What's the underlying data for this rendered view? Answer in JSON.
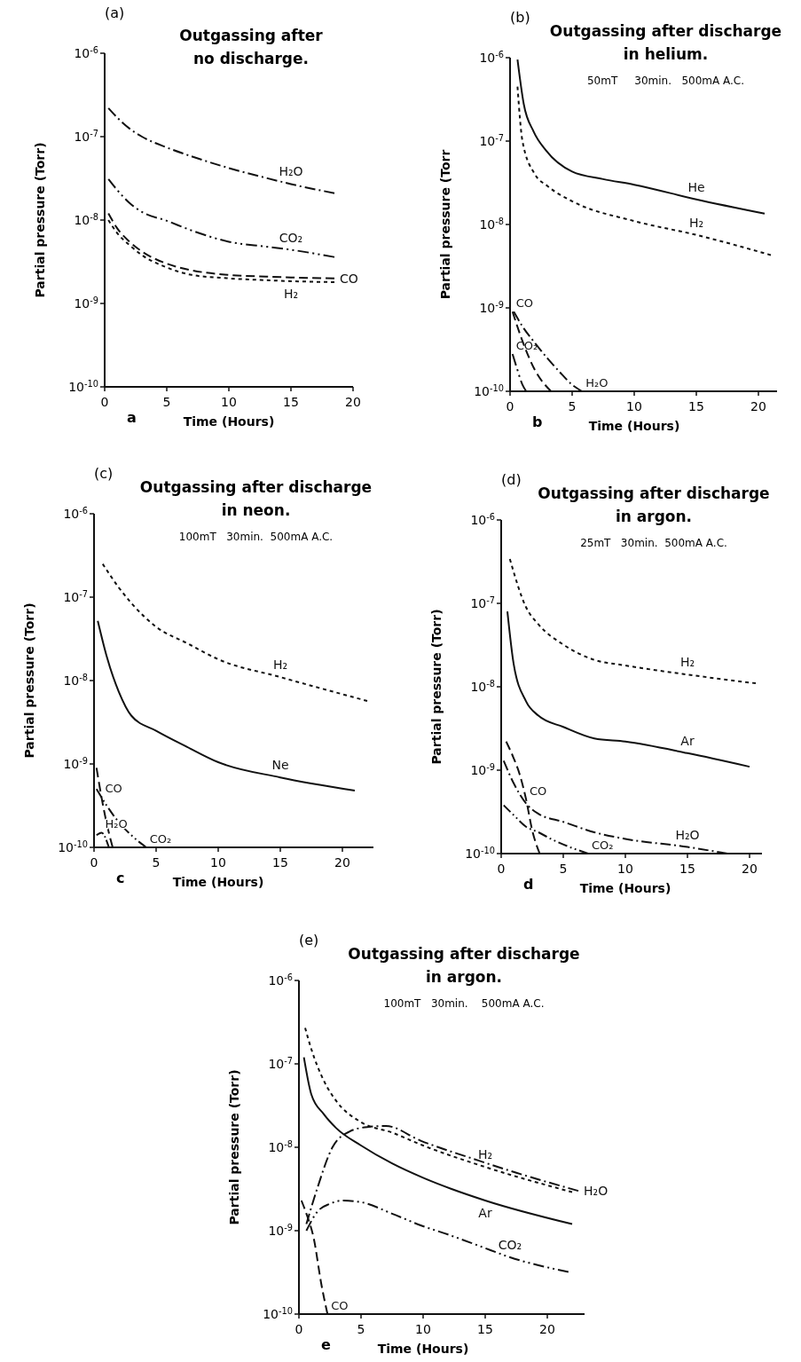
{
  "chart_data": [
    {
      "type": "line",
      "title": "Outgassing after no discharge.",
      "xlabel": "Time (Hours)",
      "ylabel": "Partial pressure (Torr)",
      "annotations": [
        "(a)",
        "a"
      ],
      "log": "y",
      "grid": false,
      "marker": "none",
      "xlim": [
        0,
        20
      ],
      "xticks": [
        0,
        5,
        10,
        15,
        20
      ],
      "ylim": [
        1e-10,
        1e-06
      ],
      "yticks": [
        {
          "value": 1e-10,
          "label": "10$^{-10}$"
        },
        {
          "value": 1e-09,
          "label": "10$^{-9}$"
        },
        {
          "value": 1e-08,
          "label": "10$^{-8}$"
        },
        {
          "value": 1e-07,
          "label": "10$^{-7}$"
        },
        {
          "value": 1e-06,
          "label": "10$^{-6}$"
        }
      ],
      "series": [
        {
          "name": "H₂O",
          "color": "#111111",
          "line_style": "dashdot",
          "x": [
            0.3,
            1,
            2,
            3,
            5,
            7,
            10,
            13,
            15,
            18.5
          ],
          "values": [
            2.2e-07,
            1.7e-07,
            1.25e-07,
            1e-07,
            7.4e-08,
            5.8e-08,
            4.2e-08,
            3.2e-08,
            2.7e-08,
            2.1e-08
          ]
        },
        {
          "name": "CO₂",
          "color": "#111111",
          "line_style": "dashdotdot",
          "x": [
            0.3,
            1,
            2,
            3,
            5,
            7,
            10,
            13,
            15,
            18.5
          ],
          "values": [
            3.1e-08,
            2.3e-08,
            1.6e-08,
            1.25e-08,
            9.8e-09,
            7.5e-09,
            5.5e-09,
            4.8e-09,
            4.4e-09,
            3.6e-09
          ]
        },
        {
          "name": "CO",
          "color": "#111111",
          "line_style": "dashed",
          "x": [
            0.3,
            1,
            2,
            3,
            5,
            7,
            10,
            13,
            15,
            18.5
          ],
          "values": [
            1.2e-08,
            8e-09,
            5.5e-09,
            4.2e-09,
            3e-09,
            2.5e-09,
            2.2e-09,
            2.1e-09,
            2.05e-09,
            2e-09
          ]
        },
        {
          "name": "H₂",
          "color": "#111111",
          "line_style": "dotted",
          "x": [
            0.3,
            1,
            2,
            3,
            5,
            7,
            10,
            13,
            15,
            18.5
          ],
          "values": [
            1e-08,
            7e-09,
            5e-09,
            3.8e-09,
            2.7e-09,
            2.2e-09,
            2e-09,
            1.9e-09,
            1.85e-09,
            1.8e-09
          ]
        }
      ]
    },
    {
      "type": "line",
      "title": "Outgassing after discharge in helium.",
      "subtitle": "50mT     30min.   500mA A.C.",
      "xlabel": "Time (Hours)",
      "ylabel": "Partial pressure (Torr",
      "annotations": [
        "(b)",
        "b"
      ],
      "log": "y",
      "grid": false,
      "marker": "none",
      "xlim": [
        0,
        21.5
      ],
      "xticks": [
        0,
        5,
        10,
        15,
        20
      ],
      "ylim": [
        1e-10,
        1e-06
      ],
      "yticks": [
        {
          "value": 1e-10,
          "label": "10$^{-10}$"
        },
        {
          "value": 1e-09,
          "label": "10$^{-9}$"
        },
        {
          "value": 1e-08,
          "label": "10$^{-8}$"
        },
        {
          "value": 1e-07,
          "label": "10$^{-7}$"
        },
        {
          "value": 1e-06,
          "label": "10$^{-6}$"
        }
      ],
      "series": [
        {
          "name": "He",
          "color": "#111111",
          "line_style": "solid",
          "x": [
            0.6,
            1.1,
            1.9,
            2.9,
            5,
            7.5,
            10,
            15,
            20.5
          ],
          "values": [
            9.5e-07,
            2.8e-07,
            1.3e-07,
            7.7e-08,
            4.3e-08,
            3.5e-08,
            3e-08,
            2e-08,
            1.35e-08
          ]
        },
        {
          "name": "H₂",
          "color": "#111111",
          "line_style": "dotted",
          "x": [
            0.6,
            1,
            2,
            3,
            5,
            10,
            15,
            21
          ],
          "values": [
            4.5e-07,
            1e-07,
            4e-08,
            2.9e-08,
            1.9e-08,
            1.1e-08,
            7.5e-09,
            4.3e-09
          ]
        },
        {
          "name": "CO₂",
          "color": "#111111",
          "line_style": "dashdotdot",
          "x": [
            0.2,
            0.5,
            1,
            1.3
          ],
          "values": [
            2.8e-10,
            2e-10,
            1.2e-10,
            1e-10
          ]
        },
        {
          "name": "CO",
          "color": "#111111",
          "line_style": "dashed",
          "x": [
            0.2,
            1,
            2,
            3.3
          ],
          "values": [
            9e-10,
            4e-10,
            1.8e-10,
            1e-10
          ]
        },
        {
          "name": "H₂O",
          "color": "#111111",
          "line_style": "dashdot",
          "x": [
            0.3,
            1,
            2,
            3,
            4,
            5,
            5.8
          ],
          "values": [
            9e-10,
            6e-10,
            3.8e-10,
            2.5e-10,
            1.7e-10,
            1.2e-10,
            1e-10
          ]
        }
      ]
    },
    {
      "type": "line",
      "title": "Outgassing after discharge in neon.",
      "subtitle": "100mT   30min.  500mA A.C.",
      "xlabel": "Time (Hours)",
      "ylabel": "Partial pressure (Torr)",
      "annotations": [
        "(c)",
        "c"
      ],
      "log": "y",
      "grid": false,
      "marker": "none",
      "xlim": [
        0,
        22.5
      ],
      "xticks": [
        0,
        5,
        10,
        15,
        20
      ],
      "ylim": [
        1e-10,
        1e-06
      ],
      "yticks": [
        {
          "value": 1e-10,
          "label": "10$^{-10}$"
        },
        {
          "value": 1e-09,
          "label": "10$^{-9}$"
        },
        {
          "value": 1e-08,
          "label": "10$^{-8}$"
        },
        {
          "value": 1e-07,
          "label": "10$^{-7}$"
        },
        {
          "value": 1e-06,
          "label": "10$^{-6}$"
        }
      ],
      "series": [
        {
          "name": "H₂",
          "color": "#111111",
          "line_style": "dotted",
          "x": [
            0.7,
            2,
            3,
            5,
            7.5,
            10,
            15,
            22
          ],
          "values": [
            2.5e-07,
            1.3e-07,
            8.5e-08,
            4.4e-08,
            2.8e-08,
            1.8e-08,
            1.1e-08,
            5.7e-09
          ]
        },
        {
          "name": "Ne",
          "color": "#111111",
          "line_style": "solid",
          "x": [
            0.3,
            1,
            2,
            3,
            5,
            7.5,
            10,
            15,
            21
          ],
          "values": [
            5.2e-08,
            2e-08,
            7.3e-09,
            3.8e-09,
            2.5e-09,
            1.6e-09,
            1.05e-09,
            6.9e-10,
            4.8e-10
          ]
        },
        {
          "name": "CO₂",
          "color": "#111111",
          "line_style": "dashdotdot",
          "x": [
            0.2,
            1,
            2,
            3,
            4.2
          ],
          "values": [
            5e-10,
            3.2e-10,
            2e-10,
            1.4e-10,
            1e-10
          ]
        },
        {
          "name": "CO",
          "color": "#111111",
          "line_style": "dashed",
          "x": [
            0.2,
            0.6,
            1,
            1.5
          ],
          "values": [
            9e-10,
            4e-10,
            2e-10,
            1e-10
          ]
        },
        {
          "name": "H₂O",
          "color": "#111111",
          "line_style": "dashdot",
          "x": [
            0.2,
            0.6,
            1.2
          ],
          "values": [
            1.4e-10,
            1.5e-10,
            1e-10
          ]
        }
      ]
    },
    {
      "type": "line",
      "title": "Outgassing after discharge in argon.",
      "subtitle": "25mT   30min.  500mA A.C.",
      "xlabel": "Time (Hours)",
      "ylabel": "Partial pressure (Torr)",
      "annotations": [
        "(d)",
        "d"
      ],
      "log": "y",
      "grid": false,
      "marker": "none",
      "xlim": [
        0,
        21
      ],
      "xticks": [
        0,
        5,
        10,
        15,
        20
      ],
      "ylim": [
        1e-10,
        1e-06
      ],
      "yticks": [
        {
          "value": 1e-10,
          "label": "10$^{-10}$"
        },
        {
          "value": 1e-09,
          "label": "10$^{-9}$"
        },
        {
          "value": 1e-08,
          "label": "10$^{-8}$"
        },
        {
          "value": 1e-07,
          "label": "10$^{-7}$"
        },
        {
          "value": 1e-06,
          "label": "10$^{-6}$"
        }
      ],
      "series": [
        {
          "name": "H₂",
          "color": "#111111",
          "line_style": "dotted",
          "x": [
            0.7,
            2,
            3,
            5,
            7.5,
            10,
            15,
            20.5
          ],
          "values": [
            3.4e-07,
            9e-08,
            5.6e-08,
            3.2e-08,
            2.1e-08,
            1.8e-08,
            1.4e-08,
            1.1e-08
          ]
        },
        {
          "name": "Ar",
          "color": "#111111",
          "line_style": "solid",
          "x": [
            0.5,
            1,
            2,
            3,
            5,
            7.5,
            10,
            15,
            20
          ],
          "values": [
            8e-08,
            1.9e-08,
            6.7e-09,
            4.5e-09,
            3.3e-09,
            2.4e-09,
            2.2e-09,
            1.6e-09,
            1.1e-09
          ]
        },
        {
          "name": "CO",
          "color": "#111111",
          "line_style": "dashed",
          "x": [
            0.4,
            1,
            1.5,
            2,
            2.5,
            3.1
          ],
          "values": [
            2.2e-09,
            1.4e-09,
            8.8e-10,
            4.5e-10,
            1.9e-10,
            1e-10
          ]
        },
        {
          "name": "CO₂",
          "color": "#111111",
          "line_style": "dashdotdot",
          "x": [
            0.2,
            1,
            2,
            3,
            4,
            5.5,
            7
          ],
          "values": [
            3.8e-10,
            2.9e-10,
            2.1e-10,
            1.8e-10,
            1.5e-10,
            1.2e-10,
            1e-10
          ]
        },
        {
          "name": "H₂O",
          "color": "#111111",
          "line_style": "dashdot",
          "x": [
            0.2,
            1,
            2,
            3,
            5,
            7.5,
            10,
            15,
            18.2
          ],
          "values": [
            1.3e-09,
            7e-10,
            4e-10,
            3e-10,
            2.4e-10,
            1.8e-10,
            1.5e-10,
            1.2e-10,
            1e-10
          ]
        }
      ]
    },
    {
      "type": "line",
      "title": "Outgassing after discharge in argon.",
      "subtitle": "100mT   30min.    500mA A.C.",
      "xlabel": "Time (Hours)",
      "ylabel": "Partial pressure (Torr)",
      "annotations": [
        "(e)",
        "e"
      ],
      "log": "y",
      "grid": false,
      "marker": "none",
      "xlim": [
        0,
        23
      ],
      "xticks": [
        0,
        5,
        10,
        15,
        20
      ],
      "ylim": [
        1e-10,
        1e-06
      ],
      "yticks": [
        {
          "value": 1e-10,
          "label": "10$^{-10}$"
        },
        {
          "value": 1e-09,
          "label": "10$^{-9}$"
        },
        {
          "value": 1e-08,
          "label": "10$^{-8}$"
        },
        {
          "value": 1e-07,
          "label": "10$^{-7}$"
        },
        {
          "value": 1e-06,
          "label": "10$^{-6}$"
        }
      ],
      "series": [
        {
          "name": "H₂",
          "color": "#111111",
          "line_style": "dotted",
          "x": [
            0.5,
            1,
            2,
            3,
            5,
            7.5,
            10,
            15,
            22
          ],
          "values": [
            2.7e-07,
            1.5e-07,
            6.3e-08,
            3.6e-08,
            2e-08,
            1.5e-08,
            1.05e-08,
            5.8e-09,
            2.9e-09
          ]
        },
        {
          "name": "H₂O",
          "color": "#111111",
          "line_style": "dashdot",
          "x": [
            0.6,
            1.5,
            2.7,
            4.1,
            5.5,
            7,
            9.8,
            14.5,
            17.4,
            22.5
          ],
          "values": [
            1.2e-09,
            3.3e-09,
            1e-08,
            1.55e-08,
            1.75e-08,
            1.8e-08,
            1.2e-08,
            6.9e-09,
            5e-09,
            3e-09
          ]
        },
        {
          "name": "Ar",
          "color": "#111111",
          "line_style": "solid",
          "x": [
            0.4,
            1,
            2,
            3,
            5,
            7.5,
            10,
            15,
            22
          ],
          "values": [
            1.2e-07,
            4.3e-08,
            2.5e-08,
            1.7e-08,
            1.05e-08,
            6.4e-09,
            4.3e-09,
            2.3e-09,
            1.2e-09
          ]
        },
        {
          "name": "CO₂",
          "color": "#111111",
          "line_style": "dashdotdot",
          "x": [
            0.6,
            1.5,
            2.5,
            3.5,
            5,
            7.5,
            9.8,
            12,
            14.6,
            17,
            21.7
          ],
          "values": [
            1e-09,
            1.7e-09,
            2.1e-09,
            2.3e-09,
            2.2e-09,
            1.6e-09,
            1.16e-09,
            9e-10,
            6.5e-10,
            4.8e-10,
            3.2e-10
          ]
        },
        {
          "name": "CO",
          "color": "#111111",
          "line_style": "dashed",
          "x": [
            0.2,
            0.6,
            1.2,
            1.8,
            2.3
          ],
          "values": [
            2.3e-09,
            1.6e-09,
            8e-10,
            2.3e-10,
            1e-10
          ]
        }
      ]
    }
  ]
}
